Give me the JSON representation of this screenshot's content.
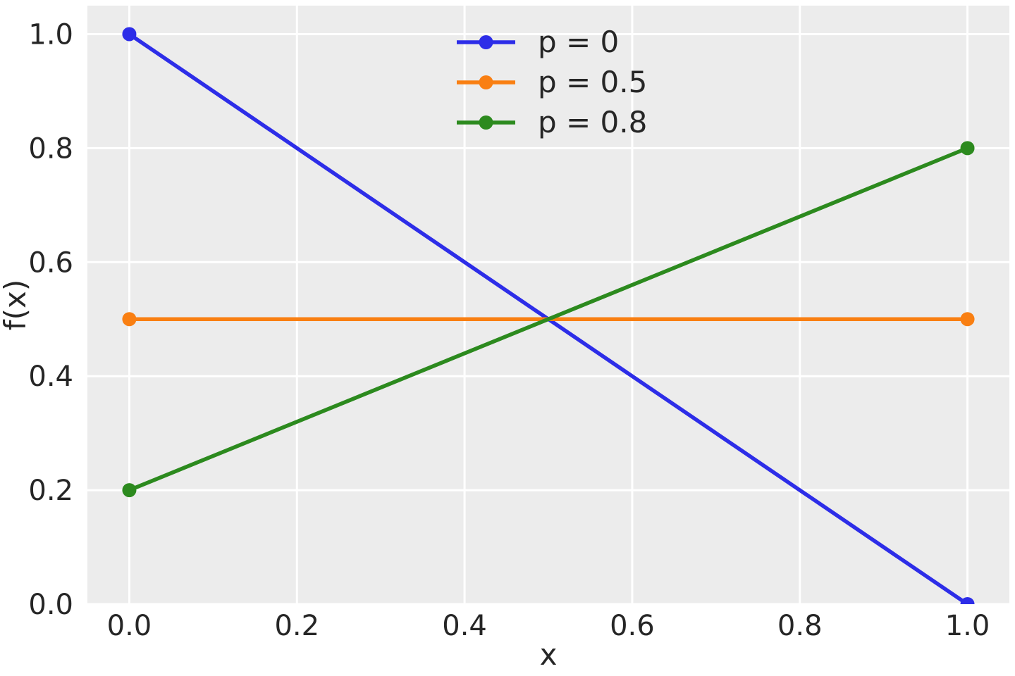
{
  "figure": {
    "background": "#ffffff",
    "plot_background": "#ececec",
    "grid_color": "#ffffff",
    "text_color": "#262626"
  },
  "chart_data": {
    "type": "line",
    "title": "",
    "xlabel": "x",
    "ylabel": "f(x)",
    "x": [
      0.0,
      1.0
    ],
    "series": [
      {
        "name": "p = 0",
        "values": [
          1.0,
          0.0
        ],
        "color": "#2d2de8"
      },
      {
        "name": "p = 0.5",
        "values": [
          0.5,
          0.5
        ],
        "color": "#f97f12"
      },
      {
        "name": "p = 0.8",
        "values": [
          0.2,
          0.8
        ],
        "color": "#2c8a1e"
      }
    ],
    "marker": "o",
    "xlim": [
      -0.05,
      1.05
    ],
    "ylim": [
      0.0,
      1.05
    ],
    "xticks": {
      "values": [
        0.0,
        0.2,
        0.4,
        0.6,
        0.8,
        1.0
      ],
      "labels": [
        "0.0",
        "0.2",
        "0.4",
        "0.6",
        "0.8",
        "1.0"
      ]
    },
    "yticks": {
      "values": [
        0.0,
        0.2,
        0.4,
        0.6,
        0.8,
        1.0
      ],
      "labels": [
        "0.0",
        "0.2",
        "0.4",
        "0.6",
        "0.8",
        "1.0"
      ]
    },
    "grid": true,
    "legend": {
      "position": "upper center",
      "frame": false,
      "entries": [
        "p = 0",
        "p = 0.5",
        "p = 0.8"
      ]
    }
  }
}
